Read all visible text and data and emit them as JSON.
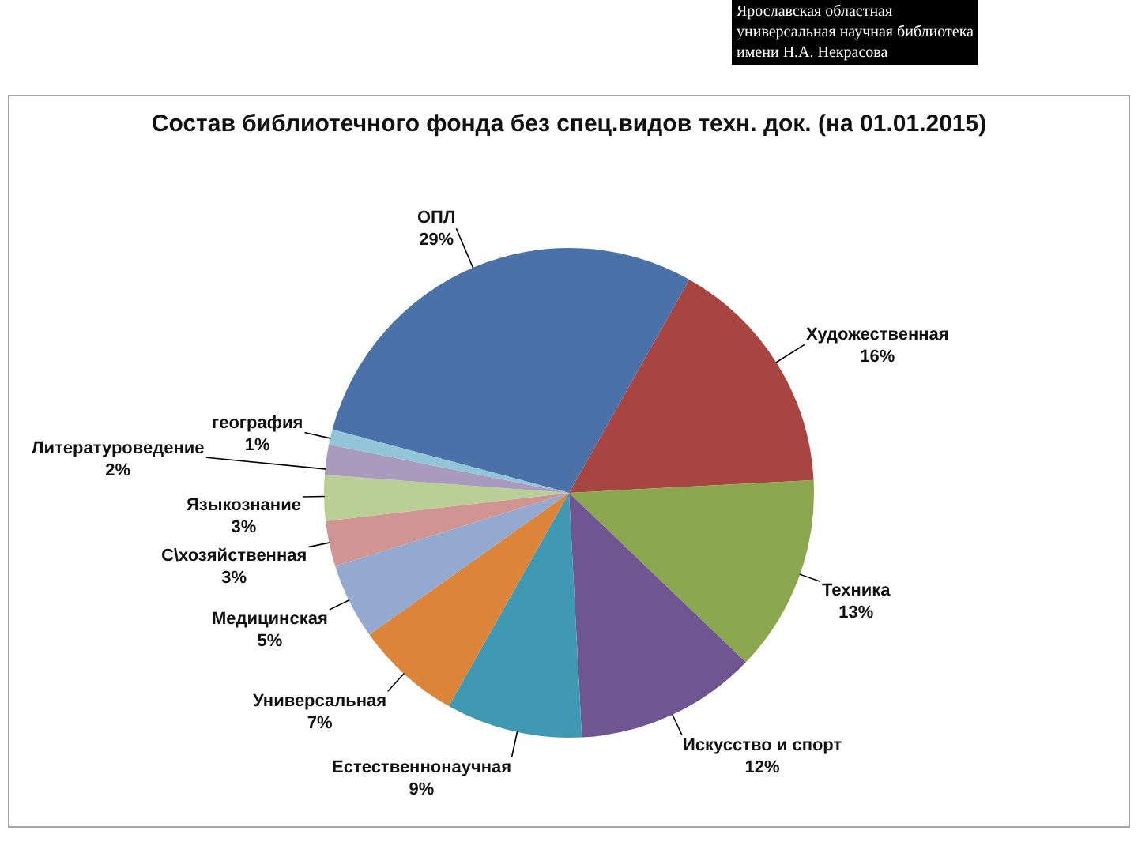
{
  "chart_data": {
    "type": "pie",
    "title": "Состав библиотечного фонда без спец.видов техн. док. (на 01.01.2015)",
    "categories": [
      "ОПЛ",
      "Художественная",
      "Техника",
      "Искусство и спорт",
      "Естественнонаучная",
      "Универсальная",
      "Медицинская",
      "С\\хозяйственная",
      "Языкознание",
      "Литературоведение",
      "география"
    ],
    "values": [
      29,
      16,
      13,
      12,
      9,
      7,
      5,
      3,
      3,
      2,
      1
    ],
    "colors": [
      "#4a72a8",
      "#a84442",
      "#8aa64e",
      "#6f5592",
      "#3f99b3",
      "#dc843a",
      "#93a9d0",
      "#d09493",
      "#b9cf95",
      "#a99bbe",
      "#92c5d8"
    ],
    "value_labels": [
      "29%",
      "16%",
      "13%",
      "12%",
      "9%",
      "7%",
      "5%",
      "3%",
      "3%",
      "2%",
      "1%"
    ],
    "annotations": [
      "Ярославская областная\nуниверсальная научная библиотека\nимени Н.А. Некрасова"
    ]
  }
}
